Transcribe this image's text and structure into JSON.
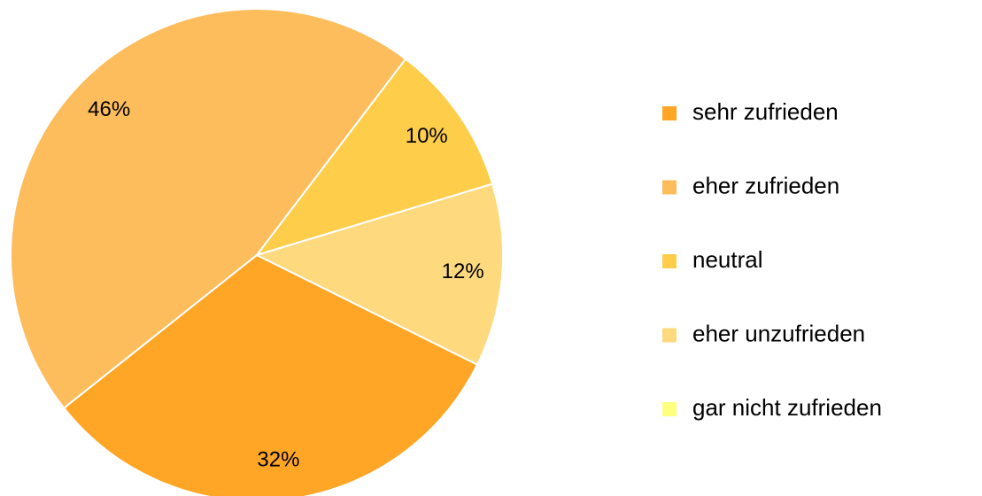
{
  "chart_data": {
    "type": "pie",
    "categories": [
      "sehr zufrieden",
      "eher zufrieden",
      "neutral",
      "eher unzufrieden",
      "gar nicht zufrieden"
    ],
    "values": [
      32,
      46,
      10,
      12,
      0
    ],
    "value_labels": [
      "32%",
      "46%",
      "10%",
      "12%",
      null
    ],
    "colors": [
      "#ffa626",
      "#fdbd5c",
      "#fecd4a",
      "#fed97e",
      "#ffff80"
    ],
    "legend": "right"
  }
}
